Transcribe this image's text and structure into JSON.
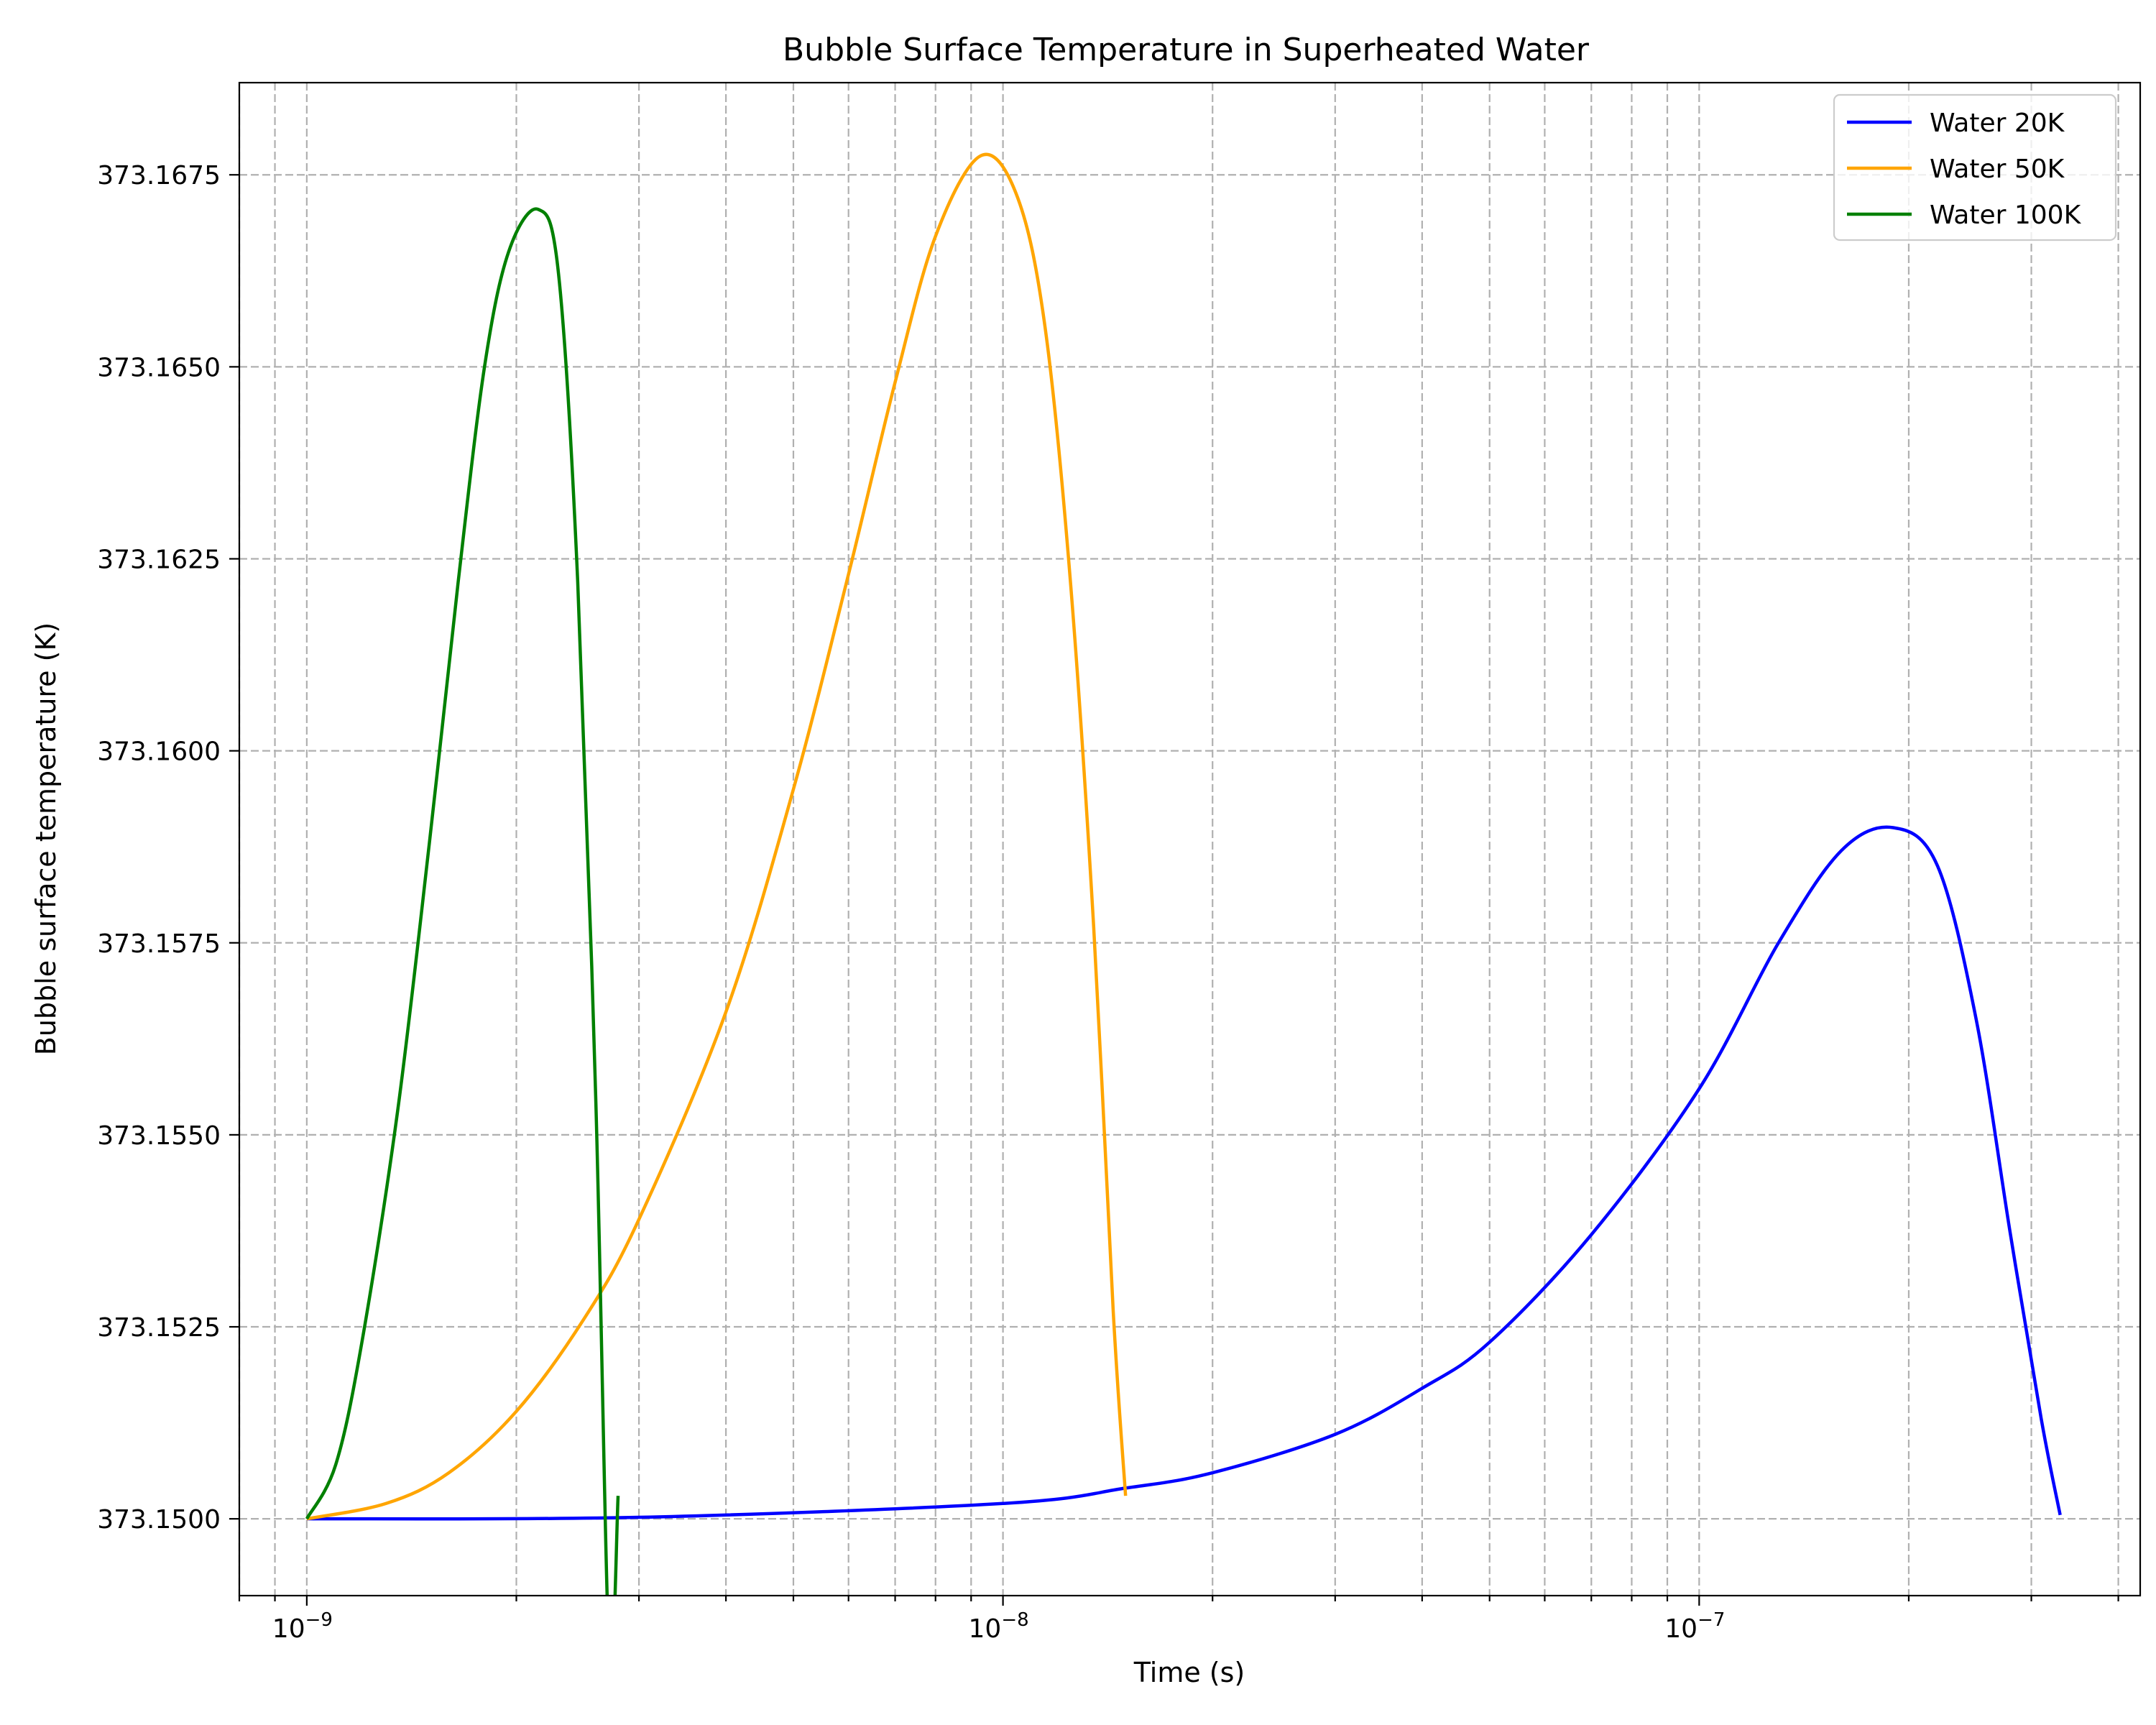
{
  "chart_data": {
    "type": "line",
    "title": "Bubble Surface Temperature in Superheated Water",
    "xlabel": "Time (s)",
    "ylabel": "Bubble surface temperature (K)",
    "x_scale": "log",
    "xlim": [
      8e-10,
      4.3e-07
    ],
    "ylim": [
      373.149,
      373.1687
    ],
    "x_major_ticks": [
      {
        "value": 1e-09,
        "base": "10",
        "exp": "−9"
      },
      {
        "value": 1e-08,
        "base": "10",
        "exp": "−8"
      },
      {
        "value": 1e-07,
        "base": "10",
        "exp": "−7"
      }
    ],
    "y_ticks": [
      {
        "value": 373.15,
        "label": "373.1500"
      },
      {
        "value": 373.1525,
        "label": "373.1525"
      },
      {
        "value": 373.155,
        "label": "373.1550"
      },
      {
        "value": 373.1575,
        "label": "373.1575"
      },
      {
        "value": 373.16,
        "label": "373.1600"
      },
      {
        "value": 373.1625,
        "label": "373.1625"
      },
      {
        "value": 373.165,
        "label": "373.1650"
      },
      {
        "value": 373.1675,
        "label": "373.1675"
      }
    ],
    "grid": true,
    "legend_position": "top-right",
    "series": [
      {
        "name": "Water 20K",
        "color": "#0000ff",
        "x": [
          1e-09,
          3e-09,
          1e-08,
          1.5e-08,
          2e-08,
          3e-08,
          4e-08,
          5e-08,
          7e-08,
          1e-07,
          1.3e-07,
          1.6e-07,
          1.9e-07,
          2.2e-07,
          2.5e-07,
          2.8e-07,
          3.1e-07,
          3.3e-07
        ],
        "y": [
          373.15,
          373.15002,
          373.1502,
          373.1504,
          373.1506,
          373.1511,
          373.1517,
          373.1523,
          373.1537,
          373.1556,
          373.1575,
          373.1587,
          373.159,
          373.1585,
          373.1565,
          373.1537,
          373.1513,
          373.15005
        ]
      },
      {
        "name": "Water 50K",
        "color": "#ffa500",
        "x": [
          1e-09,
          1.3e-09,
          1.6e-09,
          2e-09,
          2.5e-09,
          3e-09,
          4e-09,
          5e-09,
          6e-09,
          7e-09,
          8e-09,
          9.3e-09,
          1.05e-08,
          1.15e-08,
          1.25e-08,
          1.35e-08,
          1.44e-08,
          1.5e-08
        ],
        "y": [
          373.15,
          373.1502,
          373.1506,
          373.1514,
          373.1526,
          373.1539,
          373.1566,
          373.1595,
          373.1623,
          373.1648,
          373.1667,
          373.16775,
          373.1672,
          373.1655,
          373.1622,
          373.1577,
          373.1527,
          373.1503
        ]
      },
      {
        "name": "Water 100K",
        "color": "#008000",
        "x": [
          1e-09,
          1.1e-09,
          1.2e-09,
          1.35e-09,
          1.5e-09,
          1.65e-09,
          1.8e-09,
          1.95e-09,
          2.15e-09,
          2.3e-09,
          2.45e-09,
          2.6e-09,
          2.72e-09,
          2.8e-09
        ],
        "y": [
          373.15,
          373.1507,
          373.1523,
          373.1553,
          373.1588,
          373.1622,
          373.165,
          373.1665,
          373.16705,
          373.1662,
          373.1622,
          373.1555,
          373.1482,
          373.1503
        ]
      }
    ]
  }
}
